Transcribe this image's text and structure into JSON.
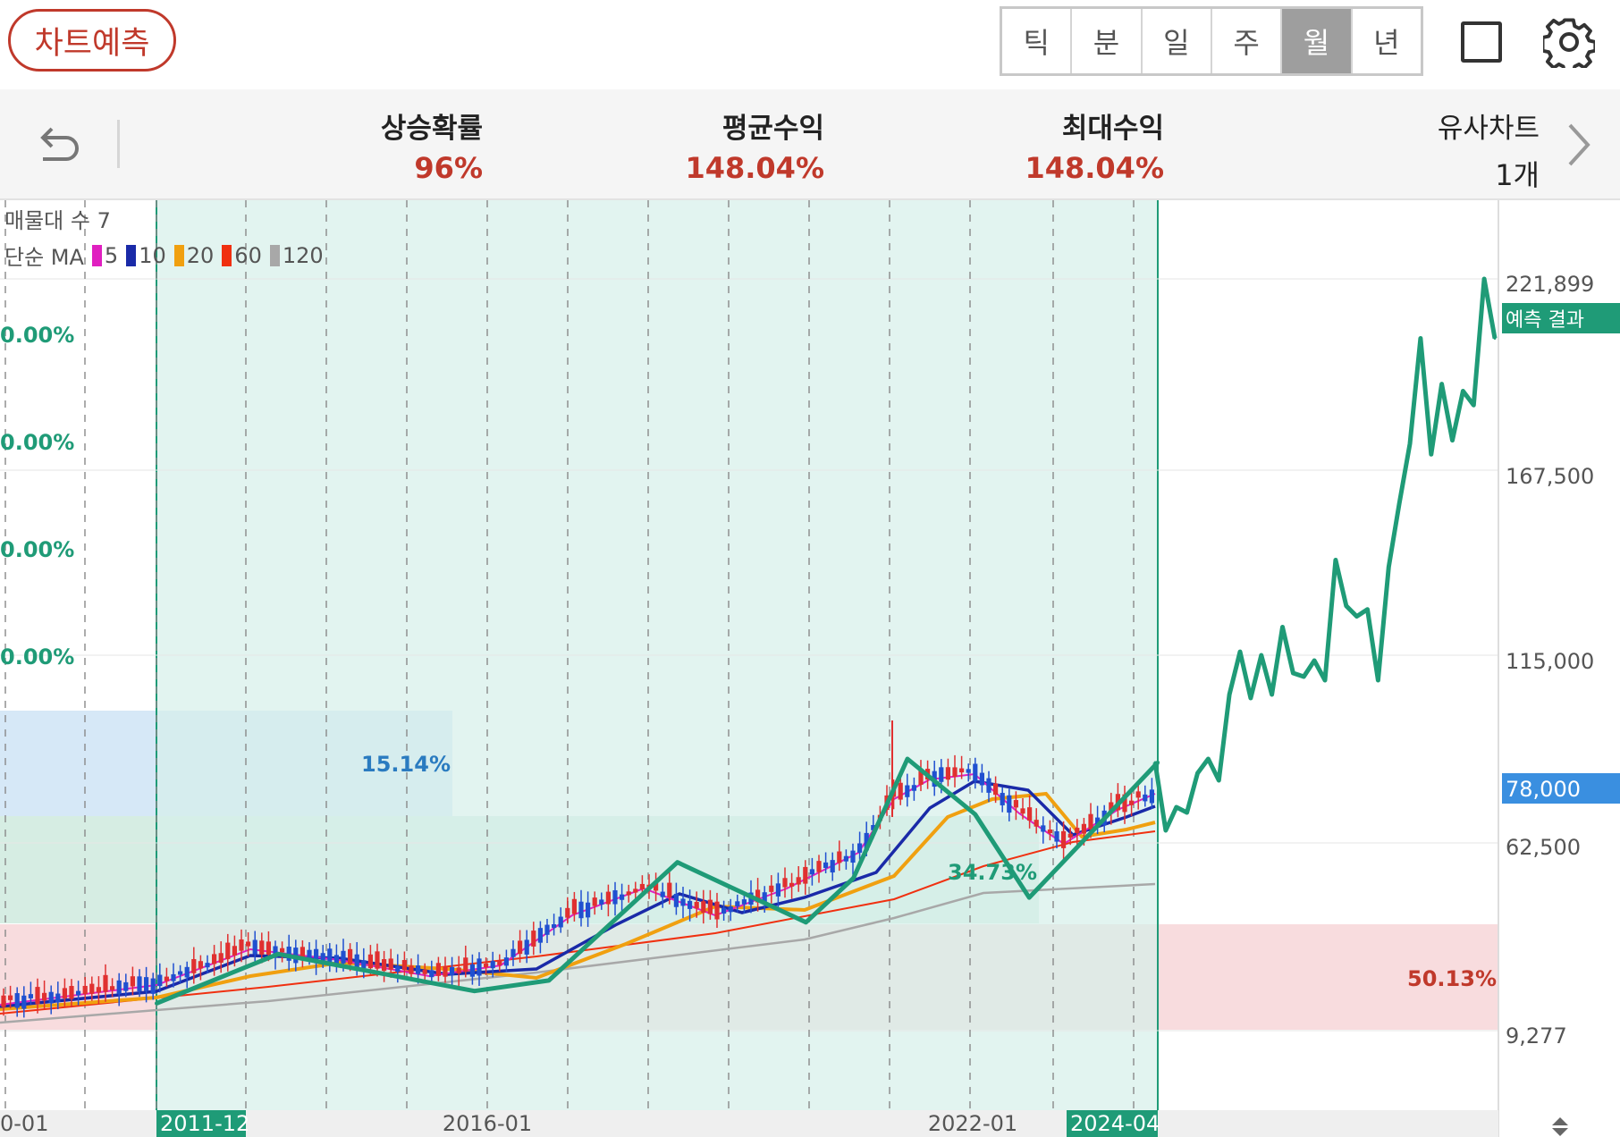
{
  "header": {
    "predict_button": "차트예측",
    "periods": [
      "틱",
      "분",
      "일",
      "주",
      "월",
      "년"
    ],
    "active_period": "월"
  },
  "stats": {
    "rise_prob_label": "상승확률",
    "rise_prob_value": "96%",
    "avg_return_label": "평균수익",
    "avg_return_value": "148.04%",
    "max_return_label": "최대수익",
    "max_return_value": "148.04%",
    "similar_label": "유사차트",
    "similar_value": "1개"
  },
  "legend": {
    "volume_profile": "매물대 수 7",
    "ma_title": "단순 MA",
    "ma_periods": [
      "5",
      "10",
      "20",
      "60",
      "120"
    ],
    "ma_colors": [
      "#e020c0",
      "#1a2aa8",
      "#f0a010",
      "#f03010",
      "#a8a8a8"
    ]
  },
  "colors": {
    "candle_up": "#e03030",
    "candle_down": "#2050d0",
    "pattern_line": "#1f9b77",
    "highlight_fill": "#d6f0ea",
    "current_price_box": "#3a8fe0"
  },
  "chart_data": {
    "type": "line",
    "y_axis": {
      "ticks": [
        "221,899",
        "167,500",
        "115,000",
        "62,500",
        "9,277"
      ],
      "current_price": "78,000",
      "prediction_badge": "예측 결과"
    },
    "x_axis": {
      "ticks": [
        "0-01",
        "2011-12",
        "2016-01",
        "2022-01",
        "2024-04"
      ]
    },
    "left_percent_labels": [
      "0.00%",
      "0.00%",
      "0.00%",
      "0.00%"
    ],
    "zones": [
      {
        "label": "15.14%",
        "color": "#cfe4f6"
      },
      {
        "label": "34.73%",
        "color": "#cfeade"
      },
      {
        "label": "50.13%",
        "color": "#f7d6d8"
      }
    ],
    "highlight_range": [
      "2011-12",
      "2024-04"
    ],
    "pattern_series": {
      "name": "",
      "x": [
        "2011-12",
        "2013-06",
        "2015-11",
        "2016-10",
        "2018-05",
        "2019-12",
        "2020-07",
        "2021-03",
        "2022-01",
        "2022-09",
        "2024-04"
      ],
      "values": [
        17000,
        31000,
        20500,
        23500,
        57000,
        40000,
        52500,
        86000,
        70500,
        47000,
        85000
      ]
    },
    "forecast_series": {
      "values": [
        85000,
        66000,
        72500,
        71000,
        82000,
        86000,
        80000,
        104000,
        116000,
        103000,
        115000,
        104000,
        123000,
        110000,
        109000,
        113500,
        108000,
        142000,
        129000,
        126000,
        128000,
        108000,
        140000,
        158000,
        175000,
        205000,
        172000,
        192000,
        176000,
        190000,
        186000,
        221899,
        205000
      ]
    },
    "monthly_candles_summary": "monthly candlestick price history from about 2010 to 2024-04 with 5/10/20/60/120 simple moving averages"
  }
}
